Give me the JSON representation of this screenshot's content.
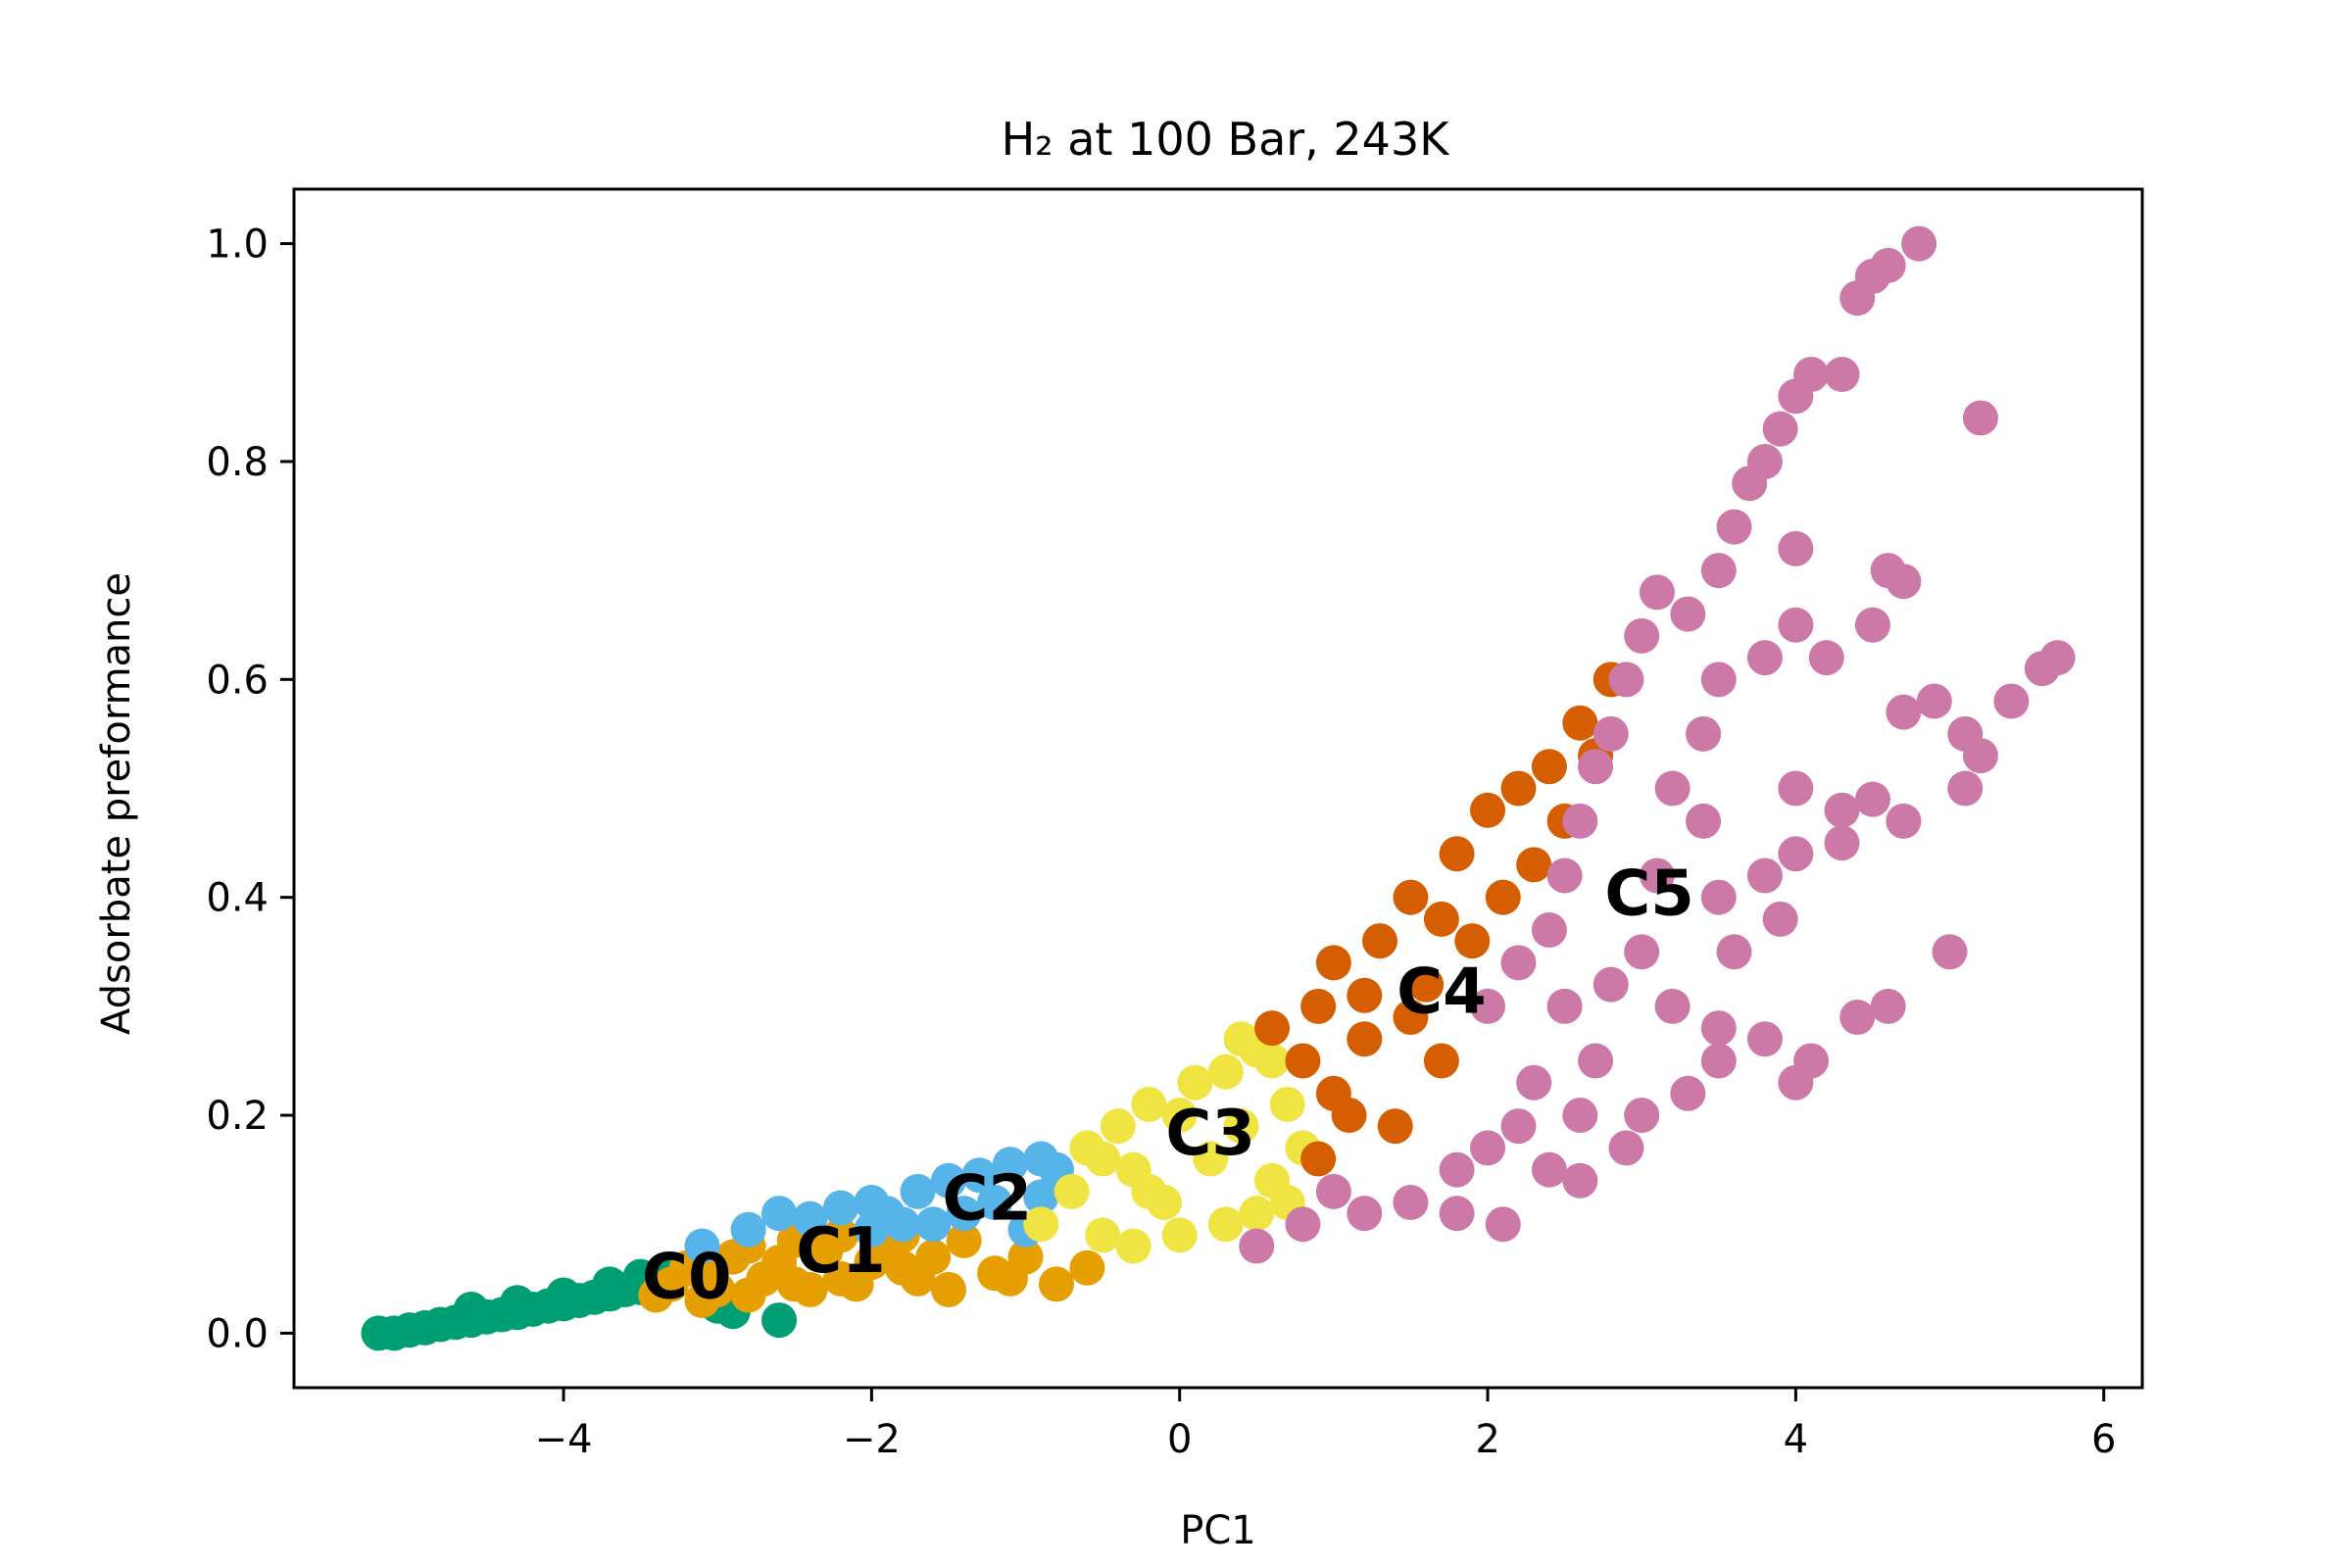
{
  "chart_data": {
    "type": "scatter",
    "title": "H₂ at 100 Bar, 243K",
    "xlabel": "PC1",
    "ylabel": "Adsorbate preformance",
    "xlim": [
      -5.75,
      6.25
    ],
    "ylim": [
      -0.05,
      1.05
    ],
    "grid": false,
    "x_ticks": [
      -4,
      -2,
      0,
      2,
      4,
      6
    ],
    "x_tick_labels": [
      "−4",
      "−2",
      "0",
      "2",
      "4",
      "6"
    ],
    "y_ticks": [
      0.0,
      0.2,
      0.4,
      0.6,
      0.8,
      1.0
    ],
    "y_tick_labels": [
      "0.0",
      "0.2",
      "0.4",
      "0.6",
      "0.8",
      "1.0"
    ],
    "series": [
      {
        "name": "C0",
        "color": "#009E73",
        "label_pos": [
          -3.2,
          0.048
        ],
        "points": [
          [
            -5.2,
            0.0
          ],
          [
            -5.1,
            0.0
          ],
          [
            -5.0,
            0.003
          ],
          [
            -4.9,
            0.005
          ],
          [
            -4.8,
            0.008
          ],
          [
            -4.7,
            0.01
          ],
          [
            -4.6,
            0.012
          ],
          [
            -4.5,
            0.015
          ],
          [
            -4.4,
            0.017
          ],
          [
            -4.3,
            0.019
          ],
          [
            -4.2,
            0.022
          ],
          [
            -4.1,
            0.025
          ],
          [
            -4.0,
            0.027
          ],
          [
            -3.9,
            0.03
          ],
          [
            -3.8,
            0.033
          ],
          [
            -3.7,
            0.036
          ],
          [
            -3.6,
            0.04
          ],
          [
            -3.5,
            0.042
          ],
          [
            -3.4,
            0.045
          ],
          [
            -4.6,
            0.022
          ],
          [
            -4.3,
            0.028
          ],
          [
            -4.0,
            0.035
          ],
          [
            -3.7,
            0.045
          ],
          [
            -3.5,
            0.052
          ],
          [
            -3.3,
            0.055
          ],
          [
            -3.0,
            0.025
          ],
          [
            -2.6,
            0.012
          ],
          [
            -2.9,
            0.02
          ]
        ]
      },
      {
        "name": "C1",
        "color": "#E69F00",
        "label_pos": [
          -2.2,
          0.072
        ],
        "points": [
          [
            -3.4,
            0.035
          ],
          [
            -3.3,
            0.045
          ],
          [
            -3.2,
            0.06
          ],
          [
            -3.1,
            0.055
          ],
          [
            -3.0,
            0.04
          ],
          [
            -2.9,
            0.07
          ],
          [
            -2.8,
            0.08
          ],
          [
            -2.7,
            0.05
          ],
          [
            -2.6,
            0.065
          ],
          [
            -2.5,
            0.085
          ],
          [
            -2.4,
            0.04
          ],
          [
            -2.3,
            0.075
          ],
          [
            -2.2,
            0.09
          ],
          [
            -2.1,
            0.045
          ],
          [
            -2.0,
            0.065
          ],
          [
            -1.9,
            0.08
          ],
          [
            -1.8,
            0.09
          ],
          [
            -1.7,
            0.05
          ],
          [
            -1.6,
            0.07
          ],
          [
            -1.4,
            0.085
          ],
          [
            -1.2,
            0.055
          ],
          [
            -1.0,
            0.07
          ],
          [
            -0.8,
            0.045
          ],
          [
            -0.6,
            0.06
          ],
          [
            -3.1,
            0.03
          ],
          [
            -2.8,
            0.035
          ],
          [
            -2.5,
            0.045
          ],
          [
            -2.2,
            0.05
          ],
          [
            -1.8,
            0.06
          ],
          [
            -1.5,
            0.04
          ],
          [
            -1.1,
            0.05
          ]
        ]
      },
      {
        "name": "C2",
        "color": "#56B4E9",
        "label_pos": [
          -1.25,
          0.12
        ],
        "points": [
          [
            -3.1,
            0.08
          ],
          [
            -2.8,
            0.095
          ],
          [
            -2.6,
            0.11
          ],
          [
            -2.4,
            0.105
          ],
          [
            -2.2,
            0.115
          ],
          [
            -2.0,
            0.12
          ],
          [
            -1.9,
            0.11
          ],
          [
            -1.7,
            0.13
          ],
          [
            -1.5,
            0.14
          ],
          [
            -1.3,
            0.145
          ],
          [
            -1.1,
            0.155
          ],
          [
            -0.9,
            0.16
          ],
          [
            -0.8,
            0.15
          ],
          [
            -1.6,
            0.1
          ],
          [
            -1.4,
            0.11
          ],
          [
            -1.2,
            0.12
          ],
          [
            -1.0,
            0.095
          ],
          [
            -0.9,
            0.125
          ],
          [
            -2.0,
            0.095
          ],
          [
            -1.8,
            0.1
          ]
        ]
      },
      {
        "name": "C3",
        "color": "#F0E442",
        "label_pos": [
          0.2,
          0.18
        ],
        "points": [
          [
            -0.9,
            0.1
          ],
          [
            -0.7,
            0.13
          ],
          [
            -0.6,
            0.17
          ],
          [
            -0.5,
            0.09
          ],
          [
            -0.4,
            0.19
          ],
          [
            -0.3,
            0.15
          ],
          [
            -0.2,
            0.21
          ],
          [
            -0.1,
            0.12
          ],
          [
            0.0,
            0.2
          ],
          [
            0.1,
            0.23
          ],
          [
            0.2,
            0.16
          ],
          [
            0.3,
            0.24
          ],
          [
            0.4,
            0.19
          ],
          [
            0.5,
            0.26
          ],
          [
            0.6,
            0.14
          ],
          [
            0.7,
            0.21
          ],
          [
            0.8,
            0.17
          ],
          [
            0.3,
            0.1
          ],
          [
            0.0,
            0.09
          ],
          [
            -0.3,
            0.08
          ],
          [
            0.5,
            0.11
          ],
          [
            0.7,
            0.12
          ],
          [
            0.6,
            0.25
          ],
          [
            0.4,
            0.27
          ],
          [
            -0.5,
            0.16
          ],
          [
            -0.2,
            0.13
          ]
        ]
      },
      {
        "name": "C4",
        "color": "#D55E00",
        "label_pos": [
          1.7,
          0.31
        ],
        "points": [
          [
            0.6,
            0.28
          ],
          [
            0.8,
            0.25
          ],
          [
            0.9,
            0.3
          ],
          [
            1.0,
            0.22
          ],
          [
            1.0,
            0.34
          ],
          [
            1.2,
            0.27
          ],
          [
            1.3,
            0.36
          ],
          [
            1.4,
            0.19
          ],
          [
            1.5,
            0.4
          ],
          [
            1.6,
            0.32
          ],
          [
            1.7,
            0.25
          ],
          [
            1.8,
            0.44
          ],
          [
            1.9,
            0.36
          ],
          [
            2.0,
            0.48
          ],
          [
            2.1,
            0.4
          ],
          [
            2.2,
            0.5
          ],
          [
            2.3,
            0.43
          ],
          [
            2.4,
            0.52
          ],
          [
            2.5,
            0.47
          ],
          [
            2.6,
            0.56
          ],
          [
            2.8,
            0.6
          ],
          [
            2.7,
            0.53
          ],
          [
            0.9,
            0.16
          ],
          [
            1.1,
            0.2
          ],
          [
            1.7,
            0.38
          ],
          [
            1.2,
            0.31
          ],
          [
            1.5,
            0.29
          ]
        ]
      },
      {
        "name": "C5",
        "color": "#CC79A7",
        "label_pos": [
          3.05,
          0.4
        ],
        "points": [
          [
            0.5,
            0.08
          ],
          [
            0.8,
            0.1
          ],
          [
            1.2,
            0.11
          ],
          [
            1.5,
            0.12
          ],
          [
            1.8,
            0.15
          ],
          [
            2.0,
            0.17
          ],
          [
            2.2,
            0.19
          ],
          [
            2.3,
            0.23
          ],
          [
            2.0,
            0.3
          ],
          [
            2.2,
            0.34
          ],
          [
            2.4,
            0.37
          ],
          [
            2.5,
            0.42
          ],
          [
            2.6,
            0.47
          ],
          [
            2.7,
            0.52
          ],
          [
            2.8,
            0.55
          ],
          [
            2.9,
            0.6
          ],
          [
            3.0,
            0.64
          ],
          [
            3.1,
            0.68
          ],
          [
            3.3,
            0.66
          ],
          [
            3.5,
            0.7
          ],
          [
            3.6,
            0.74
          ],
          [
            3.7,
            0.78
          ],
          [
            3.8,
            0.8
          ],
          [
            3.9,
            0.83
          ],
          [
            4.0,
            0.86
          ],
          [
            4.1,
            0.88
          ],
          [
            4.3,
            0.88
          ],
          [
            4.4,
            0.95
          ],
          [
            4.5,
            0.97
          ],
          [
            4.6,
            0.98
          ],
          [
            4.8,
            1.0
          ],
          [
            3.5,
            0.6
          ],
          [
            3.8,
            0.62
          ],
          [
            4.0,
            0.65
          ],
          [
            4.2,
            0.62
          ],
          [
            3.2,
            0.5
          ],
          [
            3.4,
            0.47
          ],
          [
            4.0,
            0.5
          ],
          [
            4.3,
            0.48
          ],
          [
            4.5,
            0.49
          ],
          [
            4.7,
            0.47
          ],
          [
            3.5,
            0.4
          ],
          [
            3.8,
            0.42
          ],
          [
            4.0,
            0.44
          ],
          [
            4.3,
            0.45
          ],
          [
            3.0,
            0.35
          ],
          [
            3.2,
            0.3
          ],
          [
            3.5,
            0.28
          ],
          [
            3.8,
            0.27
          ],
          [
            4.1,
            0.25
          ],
          [
            4.4,
            0.29
          ],
          [
            4.6,
            0.3
          ],
          [
            3.0,
            0.2
          ],
          [
            3.3,
            0.22
          ],
          [
            3.5,
            0.25
          ],
          [
            4.0,
            0.23
          ],
          [
            2.7,
            0.25
          ],
          [
            2.5,
            0.3
          ],
          [
            2.1,
            0.1
          ],
          [
            2.6,
            0.14
          ],
          [
            2.9,
            0.17
          ],
          [
            4.6,
            0.7
          ],
          [
            4.7,
            0.69
          ],
          [
            4.5,
            0.65
          ],
          [
            4.7,
            0.57
          ],
          [
            4.9,
            0.58
          ],
          [
            5.1,
            0.55
          ],
          [
            5.2,
            0.53
          ],
          [
            5.1,
            0.5
          ],
          [
            5.4,
            0.58
          ],
          [
            5.6,
            0.61
          ],
          [
            5.7,
            0.62
          ],
          [
            5.0,
            0.35
          ],
          [
            5.2,
            0.84
          ],
          [
            4.0,
            0.72
          ],
          [
            3.4,
            0.55
          ],
          [
            3.1,
            0.42
          ],
          [
            2.8,
            0.32
          ],
          [
            3.6,
            0.35
          ],
          [
            3.9,
            0.38
          ],
          [
            2.4,
            0.15
          ],
          [
            1.8,
            0.11
          ],
          [
            1.0,
            0.13
          ],
          [
            2.6,
            0.2
          ]
        ]
      }
    ]
  }
}
